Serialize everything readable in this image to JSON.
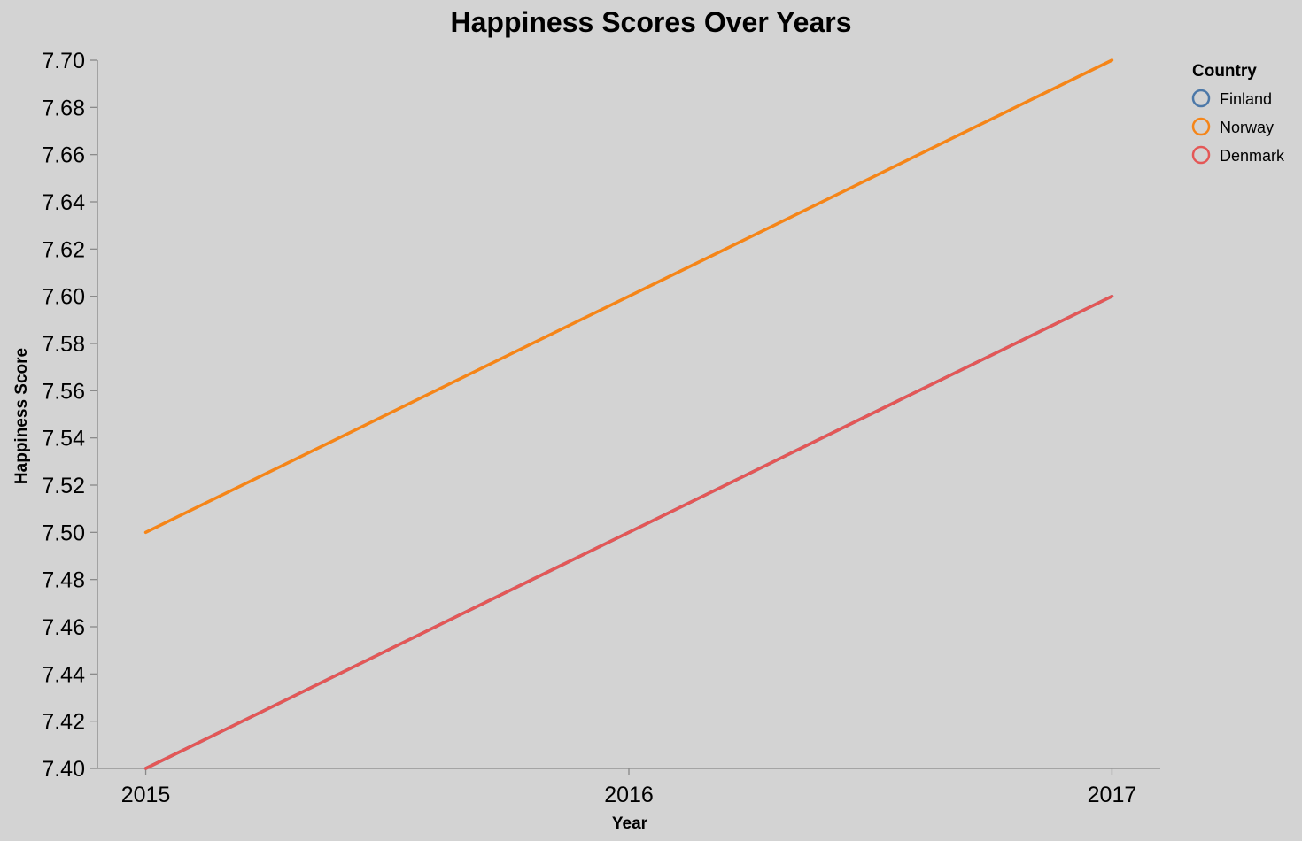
{
  "chart_data": {
    "type": "line",
    "title": "Happiness Scores Over Years",
    "xlabel": "Year",
    "ylabel": "Happiness Score",
    "x": [
      2015,
      2016,
      2017
    ],
    "xlim": [
      2014.9,
      2017.1
    ],
    "ylim": [
      7.4,
      7.7
    ],
    "y_ticks": [
      "7.40",
      "7.42",
      "7.44",
      "7.46",
      "7.48",
      "7.50",
      "7.52",
      "7.54",
      "7.56",
      "7.58",
      "7.60",
      "7.62",
      "7.64",
      "7.66",
      "7.68",
      "7.70"
    ],
    "x_ticks": [
      "2015",
      "2016",
      "2017"
    ],
    "grid": false,
    "legend": {
      "title": "Country",
      "position": "top-right"
    },
    "series": [
      {
        "name": "Finland",
        "color": "#4c78a8",
        "values": [
          7.4,
          7.5,
          7.6
        ]
      },
      {
        "name": "Norway",
        "color": "#f58518",
        "values": [
          7.5,
          7.6,
          7.7
        ]
      },
      {
        "name": "Denmark",
        "color": "#e45756",
        "values": [
          7.4,
          7.5,
          7.6
        ]
      }
    ]
  }
}
